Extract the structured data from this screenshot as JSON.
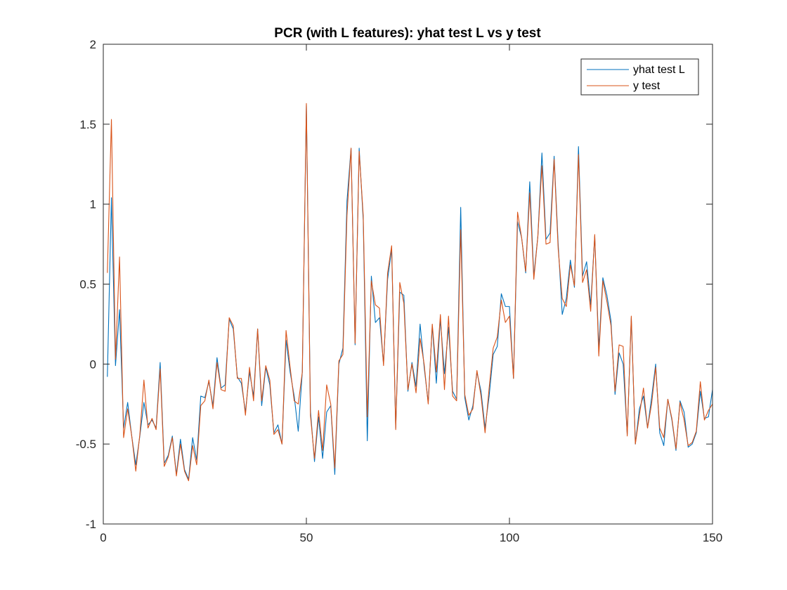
{
  "chart_data": {
    "type": "line",
    "title": "PCR (with L features): yhat test L vs y test",
    "xlabel": "",
    "ylabel": "",
    "xlim": [
      0,
      150
    ],
    "ylim": [
      -1,
      2
    ],
    "xticks": [
      0,
      50,
      100,
      150
    ],
    "yticks": [
      -1,
      -0.5,
      0,
      0.5,
      1,
      1.5,
      2
    ],
    "xtick_labels": [
      "0",
      "50",
      "100",
      "150"
    ],
    "ytick_labels": [
      "-1",
      "-0.5",
      "0",
      "0.5",
      "1",
      "1.5",
      "2"
    ],
    "grid": false,
    "box": true,
    "legend_location": "top-right",
    "series": [
      {
        "name": "yhat test L",
        "color": "#0072BD",
        "values": [
          -0.08,
          1.04,
          -0.01,
          0.34,
          -0.4,
          -0.24,
          -0.45,
          -0.63,
          -0.45,
          -0.24,
          -0.38,
          -0.35,
          -0.4,
          0.01,
          -0.62,
          -0.57,
          -0.45,
          -0.69,
          -0.47,
          -0.66,
          -0.72,
          -0.46,
          -0.6,
          -0.2,
          -0.21,
          -0.11,
          -0.26,
          0.04,
          -0.15,
          -0.13,
          0.28,
          0.22,
          -0.08,
          -0.12,
          -0.3,
          -0.05,
          -0.2,
          0.22,
          -0.26,
          -0.02,
          -0.13,
          -0.43,
          -0.38,
          -0.5,
          0.15,
          -0.05,
          -0.2,
          -0.42,
          -0.05,
          1.62,
          -0.29,
          -0.61,
          -0.33,
          -0.59,
          -0.3,
          -0.26,
          -0.69,
          0.0,
          0.1,
          1.02,
          1.35,
          0.12,
          1.35,
          0.9,
          -0.48,
          0.55,
          0.26,
          0.29,
          0.0,
          0.53,
          0.72,
          -0.4,
          0.45,
          0.43,
          -0.17,
          0.01,
          -0.14,
          0.25,
          -0.02,
          -0.24,
          0.24,
          -0.12,
          0.28,
          -0.06,
          0.23,
          -0.17,
          -0.22,
          0.98,
          -0.21,
          -0.35,
          -0.26,
          -0.05,
          -0.17,
          -0.4,
          -0.2,
          0.06,
          0.11,
          0.44,
          0.36,
          0.36,
          -0.09,
          0.89,
          0.79,
          0.57,
          1.14,
          0.55,
          0.8,
          1.32,
          0.78,
          0.82,
          1.3,
          0.75,
          0.31,
          0.41,
          0.65,
          0.48,
          1.36,
          0.55,
          0.64,
          0.37,
          0.8,
          0.1,
          0.54,
          0.43,
          0.27,
          -0.19,
          0.07,
          0.0,
          -0.44,
          0.29,
          -0.5,
          -0.28,
          -0.2,
          -0.4,
          -0.21,
          0.0,
          -0.43,
          -0.51,
          -0.22,
          -0.35,
          -0.54,
          -0.23,
          -0.3,
          -0.52,
          -0.5,
          -0.43,
          -0.17,
          -0.34,
          -0.33,
          -0.16
        ]
      },
      {
        "name": "y test",
        "color": "#D95319",
        "values": [
          0.57,
          1.53,
          0.03,
          0.67,
          -0.46,
          -0.28,
          -0.45,
          -0.67,
          -0.44,
          -0.1,
          -0.4,
          -0.34,
          -0.41,
          -0.03,
          -0.64,
          -0.58,
          -0.46,
          -0.7,
          -0.5,
          -0.67,
          -0.73,
          -0.51,
          -0.63,
          -0.26,
          -0.23,
          -0.1,
          -0.28,
          0.01,
          -0.16,
          -0.17,
          0.29,
          0.24,
          -0.09,
          -0.09,
          -0.32,
          -0.02,
          -0.23,
          0.22,
          -0.23,
          -0.01,
          -0.1,
          -0.44,
          -0.41,
          -0.5,
          0.21,
          -0.02,
          -0.23,
          -0.25,
          -0.05,
          1.63,
          -0.32,
          -0.59,
          -0.29,
          -0.54,
          -0.13,
          -0.25,
          -0.65,
          0.02,
          0.06,
          0.93,
          1.35,
          0.13,
          1.33,
          0.93,
          -0.33,
          0.52,
          0.37,
          0.35,
          -0.01,
          0.57,
          0.74,
          -0.41,
          0.51,
          0.38,
          -0.16,
          0.0,
          -0.18,
          0.16,
          0.0,
          -0.25,
          0.25,
          -0.05,
          0.31,
          -0.16,
          0.3,
          -0.2,
          -0.23,
          0.84,
          -0.19,
          -0.32,
          -0.28,
          -0.04,
          -0.2,
          -0.43,
          -0.15,
          0.1,
          0.17,
          0.4,
          0.26,
          0.3,
          -0.09,
          0.95,
          0.79,
          0.58,
          1.07,
          0.53,
          0.8,
          1.24,
          0.75,
          0.76,
          1.28,
          0.72,
          0.41,
          0.36,
          0.62,
          0.49,
          1.31,
          0.51,
          0.59,
          0.33,
          0.81,
          0.05,
          0.52,
          0.39,
          0.24,
          -0.17,
          0.12,
          0.11,
          -0.45,
          0.3,
          -0.5,
          -0.32,
          -0.15,
          -0.4,
          -0.25,
          -0.02,
          -0.4,
          -0.46,
          -0.22,
          -0.34,
          -0.53,
          -0.24,
          -0.35,
          -0.51,
          -0.49,
          -0.42,
          -0.11,
          -0.35,
          -0.29,
          -0.25
        ]
      }
    ]
  }
}
